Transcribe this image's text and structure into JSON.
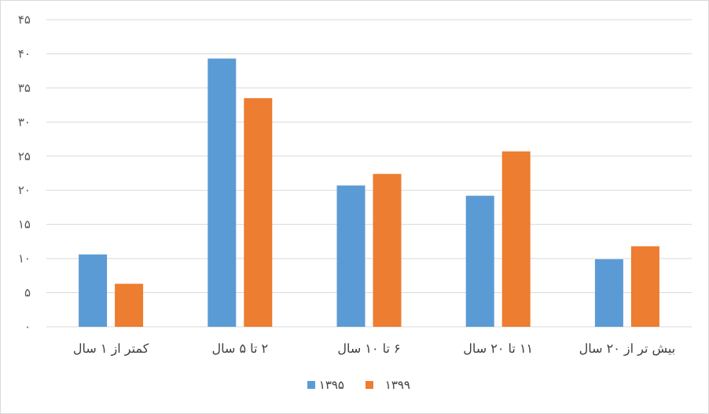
{
  "chart_data": {
    "type": "bar",
    "title": "",
    "xlabel": "",
    "ylabel": "",
    "ylim": [
      0,
      45
    ],
    "y_ticks": [
      {
        "value": 0,
        "label": "۰"
      },
      {
        "value": 5,
        "label": "۵"
      },
      {
        "value": 10,
        "label": "۱۰"
      },
      {
        "value": 15,
        "label": "۱۵"
      },
      {
        "value": 20,
        "label": "۲۰"
      },
      {
        "value": 25,
        "label": "۲۵"
      },
      {
        "value": 30,
        "label": "۳۰"
      },
      {
        "value": 35,
        "label": "۳۵"
      },
      {
        "value": 40,
        "label": "۴۰"
      },
      {
        "value": 45,
        "label": "۴۵"
      }
    ],
    "grid": true,
    "legend_position": "bottom",
    "categories": [
      "کمتر از ۱ سال",
      "۲ تا ۵ سال",
      "۶ تا ۱۰ سال",
      "۱۱ تا ۲۰ سال",
      "بیش تر از ۲۰ سال"
    ],
    "series": [
      {
        "name": "۱۳۹۵",
        "color": "#5b9bd5",
        "values": [
          10.6,
          39.3,
          20.7,
          19.2,
          9.9
        ]
      },
      {
        "name": "۱۳۹۹",
        "color": "#ed7d31",
        "values": [
          6.3,
          33.5,
          22.4,
          25.7,
          11.8
        ]
      }
    ]
  }
}
